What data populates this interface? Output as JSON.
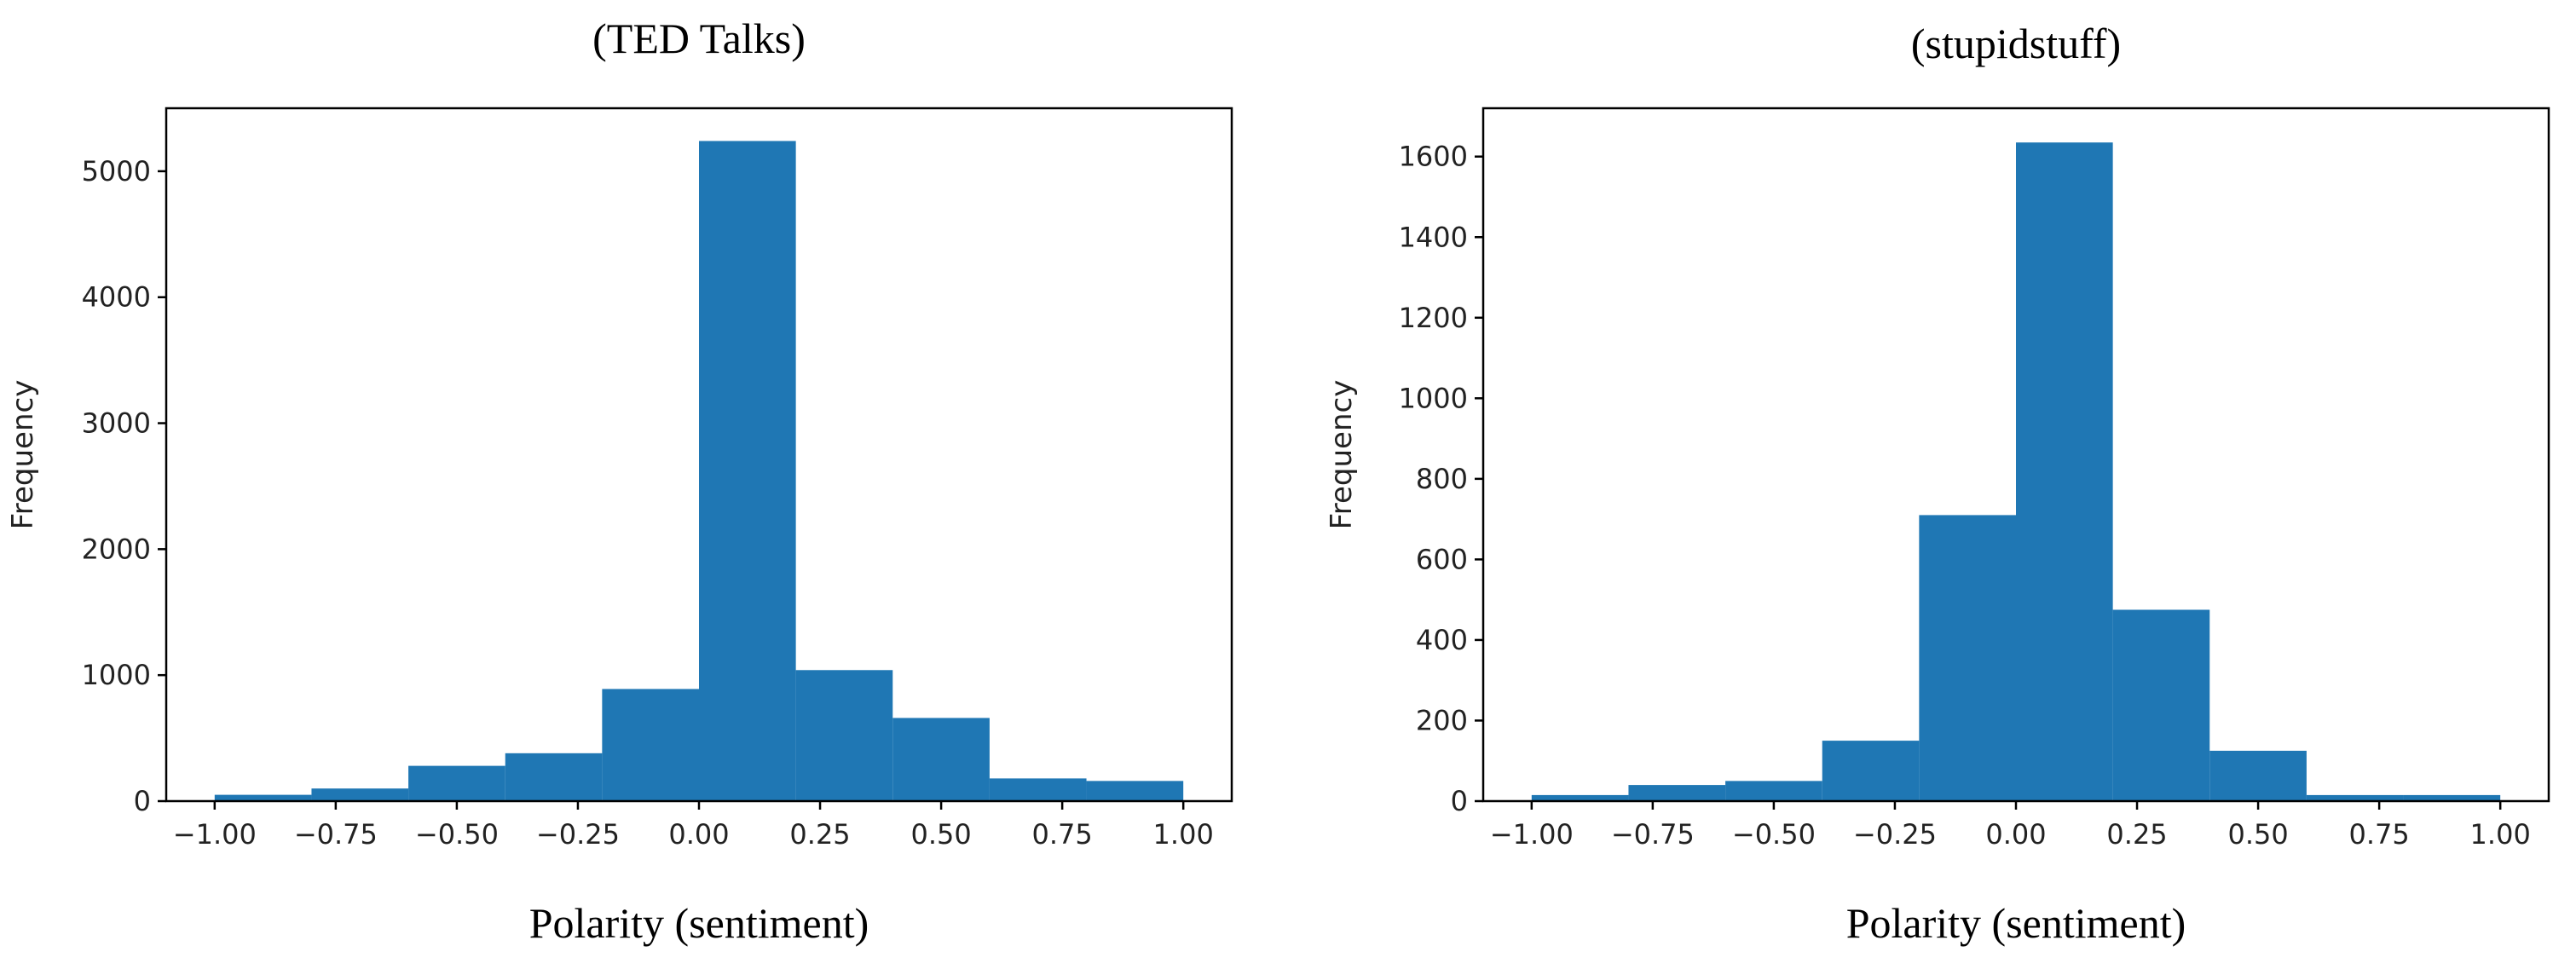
{
  "chart_data": [
    {
      "type": "bar",
      "title": "(TED Talks)",
      "xlabel": "Polarity (sentiment)",
      "ylabel": "Frequency",
      "bin_edges": [
        -1.0,
        -0.8,
        -0.6,
        -0.4,
        -0.2,
        0.0,
        0.2,
        0.4,
        0.6,
        0.8,
        1.0
      ],
      "values": [
        50,
        100,
        280,
        380,
        890,
        5240,
        1040,
        660,
        180,
        160
      ],
      "xlim": [
        -1.1,
        1.1
      ],
      "ylim": [
        0,
        5500
      ],
      "xticks": [
        -1.0,
        -0.75,
        -0.5,
        -0.25,
        0.0,
        0.25,
        0.5,
        0.75,
        1.0
      ],
      "xtick_labels": [
        "−1.00",
        "−0.75",
        "−0.50",
        "−0.25",
        "0.00",
        "0.25",
        "0.50",
        "0.75",
        "1.00"
      ],
      "yticks": [
        0,
        1000,
        2000,
        3000,
        4000,
        5000
      ],
      "ytick_labels": [
        "0",
        "1000",
        "2000",
        "3000",
        "4000",
        "5000"
      ],
      "grid": false,
      "bar_color": "#1f77b4"
    },
    {
      "type": "bar",
      "title": "(stupidstuff)",
      "xlabel": "Polarity (sentiment)",
      "ylabel": "Frequency",
      "bin_edges": [
        -1.0,
        -0.8,
        -0.6,
        -0.4,
        -0.2,
        0.0,
        0.2,
        0.4,
        0.6,
        0.8,
        1.0
      ],
      "values": [
        15,
        40,
        50,
        150,
        710,
        1635,
        475,
        125,
        15,
        15
      ],
      "xlim": [
        -1.1,
        1.1
      ],
      "ylim": [
        0,
        1720
      ],
      "xticks": [
        -1.0,
        -0.75,
        -0.5,
        -0.25,
        0.0,
        0.25,
        0.5,
        0.75,
        1.0
      ],
      "xtick_labels": [
        "−1.00",
        "−0.75",
        "−0.50",
        "−0.25",
        "0.00",
        "0.25",
        "0.50",
        "0.75",
        "1.00"
      ],
      "yticks": [
        0,
        200,
        400,
        600,
        800,
        1000,
        1200,
        1400,
        1600
      ],
      "ytick_labels": [
        "0",
        "200",
        "400",
        "600",
        "800",
        "1000",
        "1200",
        "1400",
        "1600"
      ],
      "grid": false,
      "bar_color": "#1f77b4"
    }
  ]
}
